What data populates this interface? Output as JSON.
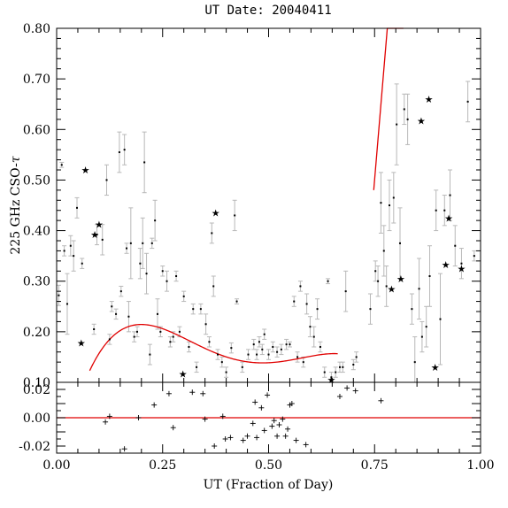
{
  "chart_data": {
    "type": "scatter",
    "title": "UT Date: 20040411",
    "xlabel": "UT (Fraction of Day)",
    "ylabel": "225 GHz CSO-",
    "ylabel_symbol": "τ",
    "xlim": [
      0.0,
      1.0
    ],
    "top_panel": {
      "ylim": [
        0.1,
        0.8
      ],
      "x_ticks": [
        "0.00",
        "0.25",
        "0.50",
        "0.75",
        "1.00"
      ],
      "y_ticks": [
        "0.10",
        "0.20",
        "0.30",
        "0.40",
        "0.50",
        "0.60",
        "0.70",
        "0.80"
      ],
      "measurements": [
        {
          "x": 0.005,
          "y": 0.272,
          "e": 0.02
        },
        {
          "x": 0.012,
          "y": 0.53,
          "e": 0.005
        },
        {
          "x": 0.018,
          "y": 0.36,
          "e": 0.01
        },
        {
          "x": 0.025,
          "y": 0.255,
          "e": 0.06
        },
        {
          "x": 0.033,
          "y": 0.37,
          "e": 0.02
        },
        {
          "x": 0.04,
          "y": 0.35,
          "e": 0.03
        },
        {
          "x": 0.048,
          "y": 0.445,
          "e": 0.02
        },
        {
          "x": 0.06,
          "y": 0.335,
          "e": 0.01
        },
        {
          "x": 0.088,
          "y": 0.205,
          "e": 0.01
        },
        {
          "x": 0.095,
          "y": 0.392,
          "e": 0.02
        },
        {
          "x": 0.108,
          "y": 0.382,
          "e": 0.03
        },
        {
          "x": 0.118,
          "y": 0.5,
          "e": 0.03
        },
        {
          "x": 0.125,
          "y": 0.185,
          "e": 0.01
        },
        {
          "x": 0.13,
          "y": 0.25,
          "e": 0.01
        },
        {
          "x": 0.14,
          "y": 0.235,
          "e": 0.01
        },
        {
          "x": 0.148,
          "y": 0.555,
          "e": 0.04
        },
        {
          "x": 0.152,
          "y": 0.28,
          "e": 0.01
        },
        {
          "x": 0.16,
          "y": 0.56,
          "e": 0.03
        },
        {
          "x": 0.165,
          "y": 0.365,
          "e": 0.01
        },
        {
          "x": 0.17,
          "y": 0.23,
          "e": 0.03
        },
        {
          "x": 0.175,
          "y": 0.375,
          "e": 0.07
        },
        {
          "x": 0.183,
          "y": 0.19,
          "e": 0.01
        },
        {
          "x": 0.19,
          "y": 0.2,
          "e": 0.01
        },
        {
          "x": 0.197,
          "y": 0.335,
          "e": 0.03
        },
        {
          "x": 0.203,
          "y": 0.375,
          "e": 0.05
        },
        {
          "x": 0.207,
          "y": 0.535,
          "e": 0.06
        },
        {
          "x": 0.212,
          "y": 0.315,
          "e": 0.04
        },
        {
          "x": 0.22,
          "y": 0.155,
          "e": 0.02
        },
        {
          "x": 0.225,
          "y": 0.375,
          "e": 0.01
        },
        {
          "x": 0.232,
          "y": 0.42,
          "e": 0.04
        },
        {
          "x": 0.238,
          "y": 0.235,
          "e": 0.03
        },
        {
          "x": 0.245,
          "y": 0.2,
          "e": 0.01
        },
        {
          "x": 0.25,
          "y": 0.32,
          "e": 0.01
        },
        {
          "x": 0.26,
          "y": 0.3,
          "e": 0.02
        },
        {
          "x": 0.268,
          "y": 0.18,
          "e": 0.01
        },
        {
          "x": 0.275,
          "y": 0.19,
          "e": 0.01
        },
        {
          "x": 0.282,
          "y": 0.31,
          "e": 0.01
        },
        {
          "x": 0.29,
          "y": 0.2,
          "e": 0.01
        },
        {
          "x": 0.3,
          "y": 0.27,
          "e": 0.01
        },
        {
          "x": 0.312,
          "y": 0.17,
          "e": 0.01
        },
        {
          "x": 0.322,
          "y": 0.245,
          "e": 0.01
        },
        {
          "x": 0.33,
          "y": 0.13,
          "e": 0.01
        },
        {
          "x": 0.34,
          "y": 0.245,
          "e": 0.01
        },
        {
          "x": 0.352,
          "y": 0.215,
          "e": 0.02
        },
        {
          "x": 0.36,
          "y": 0.18,
          "e": 0.01
        },
        {
          "x": 0.366,
          "y": 0.395,
          "e": 0.02
        },
        {
          "x": 0.37,
          "y": 0.29,
          "e": 0.02
        },
        {
          "x": 0.38,
          "y": 0.155,
          "e": 0.01
        },
        {
          "x": 0.39,
          "y": 0.14,
          "e": 0.01
        },
        {
          "x": 0.4,
          "y": 0.12,
          "e": 0.01
        },
        {
          "x": 0.412,
          "y": 0.168,
          "e": 0.01
        },
        {
          "x": 0.42,
          "y": 0.43,
          "e": 0.03
        },
        {
          "x": 0.425,
          "y": 0.26,
          "e": 0.005
        },
        {
          "x": 0.438,
          "y": 0.13,
          "e": 0.01
        },
        {
          "x": 0.452,
          "y": 0.155,
          "e": 0.01
        },
        {
          "x": 0.465,
          "y": 0.175,
          "e": 0.01
        },
        {
          "x": 0.472,
          "y": 0.155,
          "e": 0.01
        },
        {
          "x": 0.478,
          "y": 0.18,
          "e": 0.01
        },
        {
          "x": 0.485,
          "y": 0.165,
          "e": 0.01
        },
        {
          "x": 0.49,
          "y": 0.195,
          "e": 0.01
        },
        {
          "x": 0.5,
          "y": 0.155,
          "e": 0.01
        },
        {
          "x": 0.51,
          "y": 0.17,
          "e": 0.01
        },
        {
          "x": 0.52,
          "y": 0.16,
          "e": 0.01
        },
        {
          "x": 0.53,
          "y": 0.165,
          "e": 0.01
        },
        {
          "x": 0.542,
          "y": 0.175,
          "e": 0.01
        },
        {
          "x": 0.55,
          "y": 0.175,
          "e": 0.005
        },
        {
          "x": 0.56,
          "y": 0.26,
          "e": 0.01
        },
        {
          "x": 0.568,
          "y": 0.15,
          "e": 0.01
        },
        {
          "x": 0.575,
          "y": 0.29,
          "e": 0.01
        },
        {
          "x": 0.582,
          "y": 0.14,
          "e": 0.01
        },
        {
          "x": 0.59,
          "y": 0.255,
          "e": 0.02
        },
        {
          "x": 0.598,
          "y": 0.21,
          "e": 0.02
        },
        {
          "x": 0.607,
          "y": 0.19,
          "e": 0.02
        },
        {
          "x": 0.615,
          "y": 0.245,
          "e": 0.02
        },
        {
          "x": 0.622,
          "y": 0.17,
          "e": 0.01
        },
        {
          "x": 0.632,
          "y": 0.12,
          "e": 0.01
        },
        {
          "x": 0.64,
          "y": 0.3,
          "e": 0.005
        },
        {
          "x": 0.648,
          "y": 0.11,
          "e": 0.01
        },
        {
          "x": 0.658,
          "y": 0.12,
          "e": 0.01
        },
        {
          "x": 0.668,
          "y": 0.13,
          "e": 0.01
        },
        {
          "x": 0.675,
          "y": 0.13,
          "e": 0.01
        },
        {
          "x": 0.682,
          "y": 0.28,
          "e": 0.04
        },
        {
          "x": 0.7,
          "y": 0.135,
          "e": 0.01
        },
        {
          "x": 0.707,
          "y": 0.15,
          "e": 0.01
        },
        {
          "x": 0.74,
          "y": 0.245,
          "e": 0.03
        },
        {
          "x": 0.752,
          "y": 0.32,
          "e": 0.02
        },
        {
          "x": 0.758,
          "y": 0.3,
          "e": 0.03
        },
        {
          "x": 0.765,
          "y": 0.455,
          "e": 0.06
        },
        {
          "x": 0.772,
          "y": 0.36,
          "e": 0.05
        },
        {
          "x": 0.778,
          "y": 0.29,
          "e": 0.04
        },
        {
          "x": 0.785,
          "y": 0.45,
          "e": 0.05
        },
        {
          "x": 0.795,
          "y": 0.465,
          "e": 0.05
        },
        {
          "x": 0.802,
          "y": 0.61,
          "e": 0.08
        },
        {
          "x": 0.81,
          "y": 0.375,
          "e": 0.07
        },
        {
          "x": 0.82,
          "y": 0.64,
          "e": 0.03
        },
        {
          "x": 0.828,
          "y": 0.62,
          "e": 0.05
        },
        {
          "x": 0.838,
          "y": 0.245,
          "e": 0.03
        },
        {
          "x": 0.845,
          "y": 0.14,
          "e": 0.05
        },
        {
          "x": 0.855,
          "y": 0.285,
          "e": 0.06
        },
        {
          "x": 0.862,
          "y": 0.19,
          "e": 0.03
        },
        {
          "x": 0.872,
          "y": 0.21,
          "e": 0.04
        },
        {
          "x": 0.88,
          "y": 0.31,
          "e": 0.06
        },
        {
          "x": 0.895,
          "y": 0.44,
          "e": 0.04
        },
        {
          "x": 0.905,
          "y": 0.225,
          "e": 0.09
        },
        {
          "x": 0.915,
          "y": 0.44,
          "e": 0.03
        },
        {
          "x": 0.928,
          "y": 0.47,
          "e": 0.05
        },
        {
          "x": 0.94,
          "y": 0.37,
          "e": 0.04
        },
        {
          "x": 0.955,
          "y": 0.335,
          "e": 0.03
        },
        {
          "x": 0.97,
          "y": 0.655,
          "e": 0.04
        },
        {
          "x": 0.985,
          "y": 0.35,
          "e": 0.01
        }
      ],
      "flagged_points": [
        {
          "x": 0.058,
          "y": 0.178
        },
        {
          "x": 0.068,
          "y": 0.52
        },
        {
          "x": 0.09,
          "y": 0.392
        },
        {
          "x": 0.1,
          "y": 0.412
        },
        {
          "x": 0.298,
          "y": 0.117
        },
        {
          "x": 0.375,
          "y": 0.435
        },
        {
          "x": 0.648,
          "y": 0.105
        },
        {
          "x": 0.79,
          "y": 0.285
        },
        {
          "x": 0.812,
          "y": 0.305
        },
        {
          "x": 0.86,
          "y": 0.617
        },
        {
          "x": 0.878,
          "y": 0.66
        },
        {
          "x": 0.893,
          "y": 0.13
        },
        {
          "x": 0.918,
          "y": 0.333
        },
        {
          "x": 0.925,
          "y": 0.425
        },
        {
          "x": 0.955,
          "y": 0.325
        }
      ],
      "fit_segments": [
        {
          "x0": 0.078,
          "x1": 0.663,
          "coeffs": [
            -0.095,
            3.96,
            -17.01,
            27.84,
            -15.58
          ]
        },
        {
          "x0": 0.748,
          "x1": 0.818,
          "coeffs": [
            -7.0,
            10.0
          ]
        }
      ]
    },
    "bottom_panel": {
      "ylim": [
        -0.025,
        0.025
      ],
      "y_ticks": [
        "0.02",
        "0.00",
        "-0.02"
      ],
      "zero_line": 0.0,
      "residuals": [
        {
          "x": 0.115,
          "y": -0.003
        },
        {
          "x": 0.125,
          "y": 0.001
        },
        {
          "x": 0.16,
          "y": -0.022
        },
        {
          "x": 0.193,
          "y": 0.0
        },
        {
          "x": 0.23,
          "y": 0.009
        },
        {
          "x": 0.265,
          "y": 0.017
        },
        {
          "x": 0.275,
          "y": -0.007
        },
        {
          "x": 0.32,
          "y": 0.018
        },
        {
          "x": 0.345,
          "y": 0.017
        },
        {
          "x": 0.35,
          "y": -0.001
        },
        {
          "x": 0.372,
          "y": -0.02
        },
        {
          "x": 0.392,
          "y": 0.001
        },
        {
          "x": 0.398,
          "y": -0.015
        },
        {
          "x": 0.41,
          "y": -0.014
        },
        {
          "x": 0.44,
          "y": -0.016
        },
        {
          "x": 0.45,
          "y": -0.013
        },
        {
          "x": 0.463,
          "y": -0.004
        },
        {
          "x": 0.468,
          "y": 0.011
        },
        {
          "x": 0.472,
          "y": -0.014
        },
        {
          "x": 0.483,
          "y": 0.007
        },
        {
          "x": 0.49,
          "y": -0.009
        },
        {
          "x": 0.497,
          "y": 0.016
        },
        {
          "x": 0.508,
          "y": -0.006
        },
        {
          "x": 0.513,
          "y": -0.002
        },
        {
          "x": 0.52,
          "y": -0.013
        },
        {
          "x": 0.525,
          "y": -0.005
        },
        {
          "x": 0.533,
          "y": -0.001
        },
        {
          "x": 0.54,
          "y": -0.013
        },
        {
          "x": 0.545,
          "y": -0.008
        },
        {
          "x": 0.55,
          "y": 0.009
        },
        {
          "x": 0.555,
          "y": 0.01
        },
        {
          "x": 0.565,
          "y": -0.016
        },
        {
          "x": 0.588,
          "y": -0.019
        },
        {
          "x": 0.668,
          "y": 0.015
        },
        {
          "x": 0.685,
          "y": 0.021
        },
        {
          "x": 0.705,
          "y": 0.019
        },
        {
          "x": 0.765,
          "y": 0.012
        }
      ]
    }
  }
}
